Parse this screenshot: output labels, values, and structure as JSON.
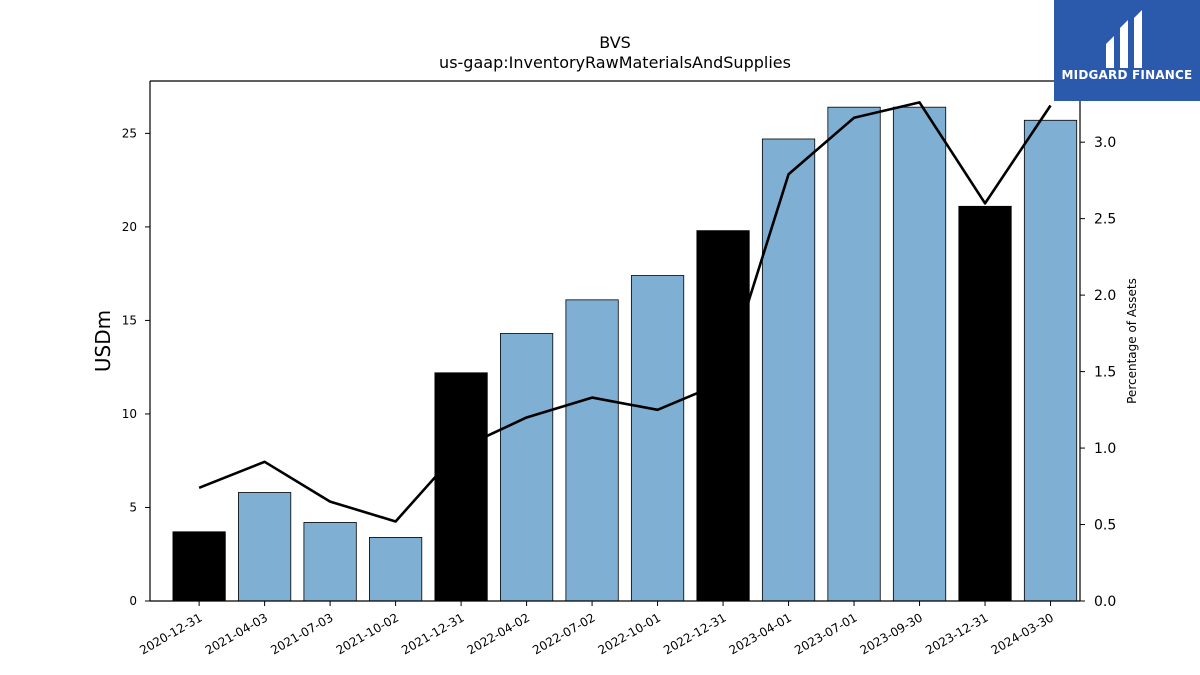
{
  "chart_data": {
    "type": "bar",
    "title": "BVS",
    "subtitle": "us-gaap:InventoryRawMaterialsAndSupplies",
    "ylabel": "USDm",
    "y2label": "Percentage of Assets",
    "ylim": [
      0,
      27.8
    ],
    "y2lim": [
      0,
      3.4
    ],
    "yticks": [
      0,
      5,
      10,
      15,
      20,
      25
    ],
    "y2ticks": [
      0.0,
      0.5,
      1.0,
      1.5,
      2.0,
      2.5,
      3.0
    ],
    "categories": [
      "2020-12-31",
      "2021-04-03",
      "2021-07-03",
      "2021-10-02",
      "2021-12-31",
      "2022-04-02",
      "2022-07-02",
      "2022-10-01",
      "2022-12-31",
      "2023-04-01",
      "2023-07-01",
      "2023-09-30",
      "2023-12-31",
      "2024-03-30"
    ],
    "series": [
      {
        "type": "bar",
        "values": [
          3.7,
          5.8,
          4.2,
          3.4,
          12.2,
          14.3,
          16.1,
          17.4,
          19.8,
          24.7,
          26.4,
          26.4,
          21.1,
          25.7
        ],
        "highlight": [
          true,
          false,
          false,
          false,
          true,
          false,
          false,
          false,
          true,
          false,
          false,
          false,
          true,
          false
        ],
        "colors": {
          "normal": "#7fb0d4",
          "highlight": "#000000"
        }
      },
      {
        "type": "line",
        "axis": "right",
        "values": [
          0.74,
          0.91,
          0.65,
          0.52,
          1.0,
          1.2,
          1.33,
          1.25,
          1.43,
          2.79,
          3.16,
          3.26,
          2.6,
          3.24
        ],
        "color": "#000000"
      }
    ],
    "grid": false
  },
  "logo": {
    "text": "MIDGARD FINANCE",
    "background": "#2b5aad"
  }
}
